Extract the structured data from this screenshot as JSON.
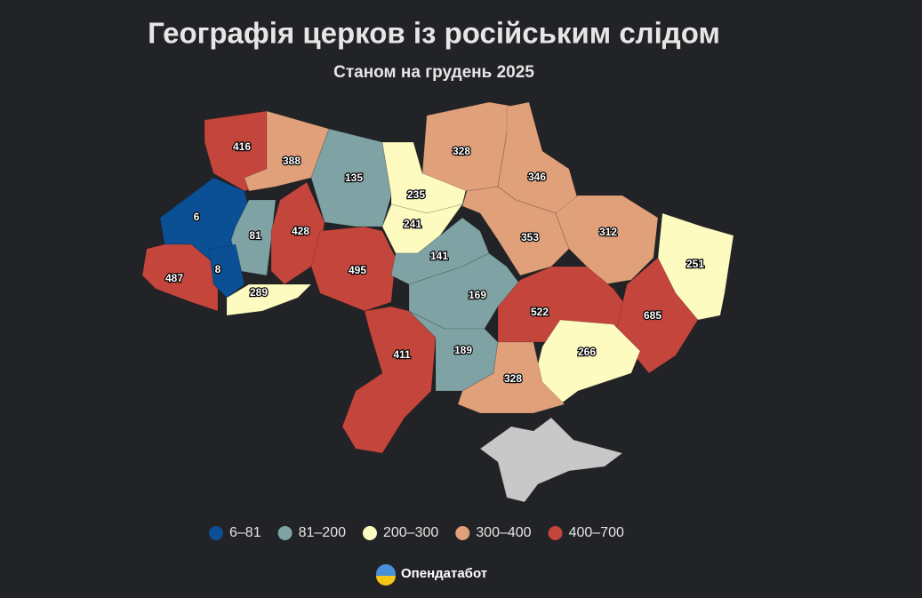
{
  "title": "Географія церков із російським слідом",
  "subtitle": "Станом на грудень 2025",
  "regions": [
    {
      "value": 416,
      "color": "#c4453c"
    },
    {
      "value": 388,
      "color": "#e0a07a"
    },
    {
      "value": 135,
      "color": "#7fa3a4"
    },
    {
      "value": 235,
      "color": "#fdfbc0"
    },
    {
      "value": 241,
      "color": "#fdfbc0"
    },
    {
      "value": 328,
      "color": "#e0a07a"
    },
    {
      "value": 346,
      "color": "#e0a07a"
    },
    {
      "value": 6,
      "color": "#0b4f94"
    },
    {
      "value": 81,
      "color": "#7fa3a4"
    },
    {
      "value": 428,
      "color": "#c4453c"
    },
    {
      "value": 353,
      "color": "#e0a07a"
    },
    {
      "value": 312,
      "color": "#e0a07a"
    },
    {
      "value": 251,
      "color": "#fdfbc0"
    },
    {
      "value": 487,
      "color": "#c4453c"
    },
    {
      "value": 8,
      "color": "#0b4f94"
    },
    {
      "value": 289,
      "color": "#fdfbc0"
    },
    {
      "value": 495,
      "color": "#c4453c"
    },
    {
      "value": 141,
      "color": "#7fa3a4"
    },
    {
      "value": 169,
      "color": "#7fa3a4"
    },
    {
      "value": 522,
      "color": "#c4453c"
    },
    {
      "value": 685,
      "color": "#c4453c"
    },
    {
      "value": 266,
      "color": "#fdfbc0"
    },
    {
      "value": 411,
      "color": "#c4453c"
    },
    {
      "value": 189,
      "color": "#7fa3a4"
    },
    {
      "value": 328,
      "color": "#e0a07a"
    }
  ],
  "legend": [
    {
      "label": "6–81",
      "color": "#0b4f94"
    },
    {
      "label": "81–200",
      "color": "#7fa3a4"
    },
    {
      "label": "200–300",
      "color": "#fdfbc0"
    },
    {
      "label": "300–400",
      "color": "#e0a07a"
    },
    {
      "label": "400–700",
      "color": "#c4453c"
    }
  ],
  "brand": "Опендатабот"
}
